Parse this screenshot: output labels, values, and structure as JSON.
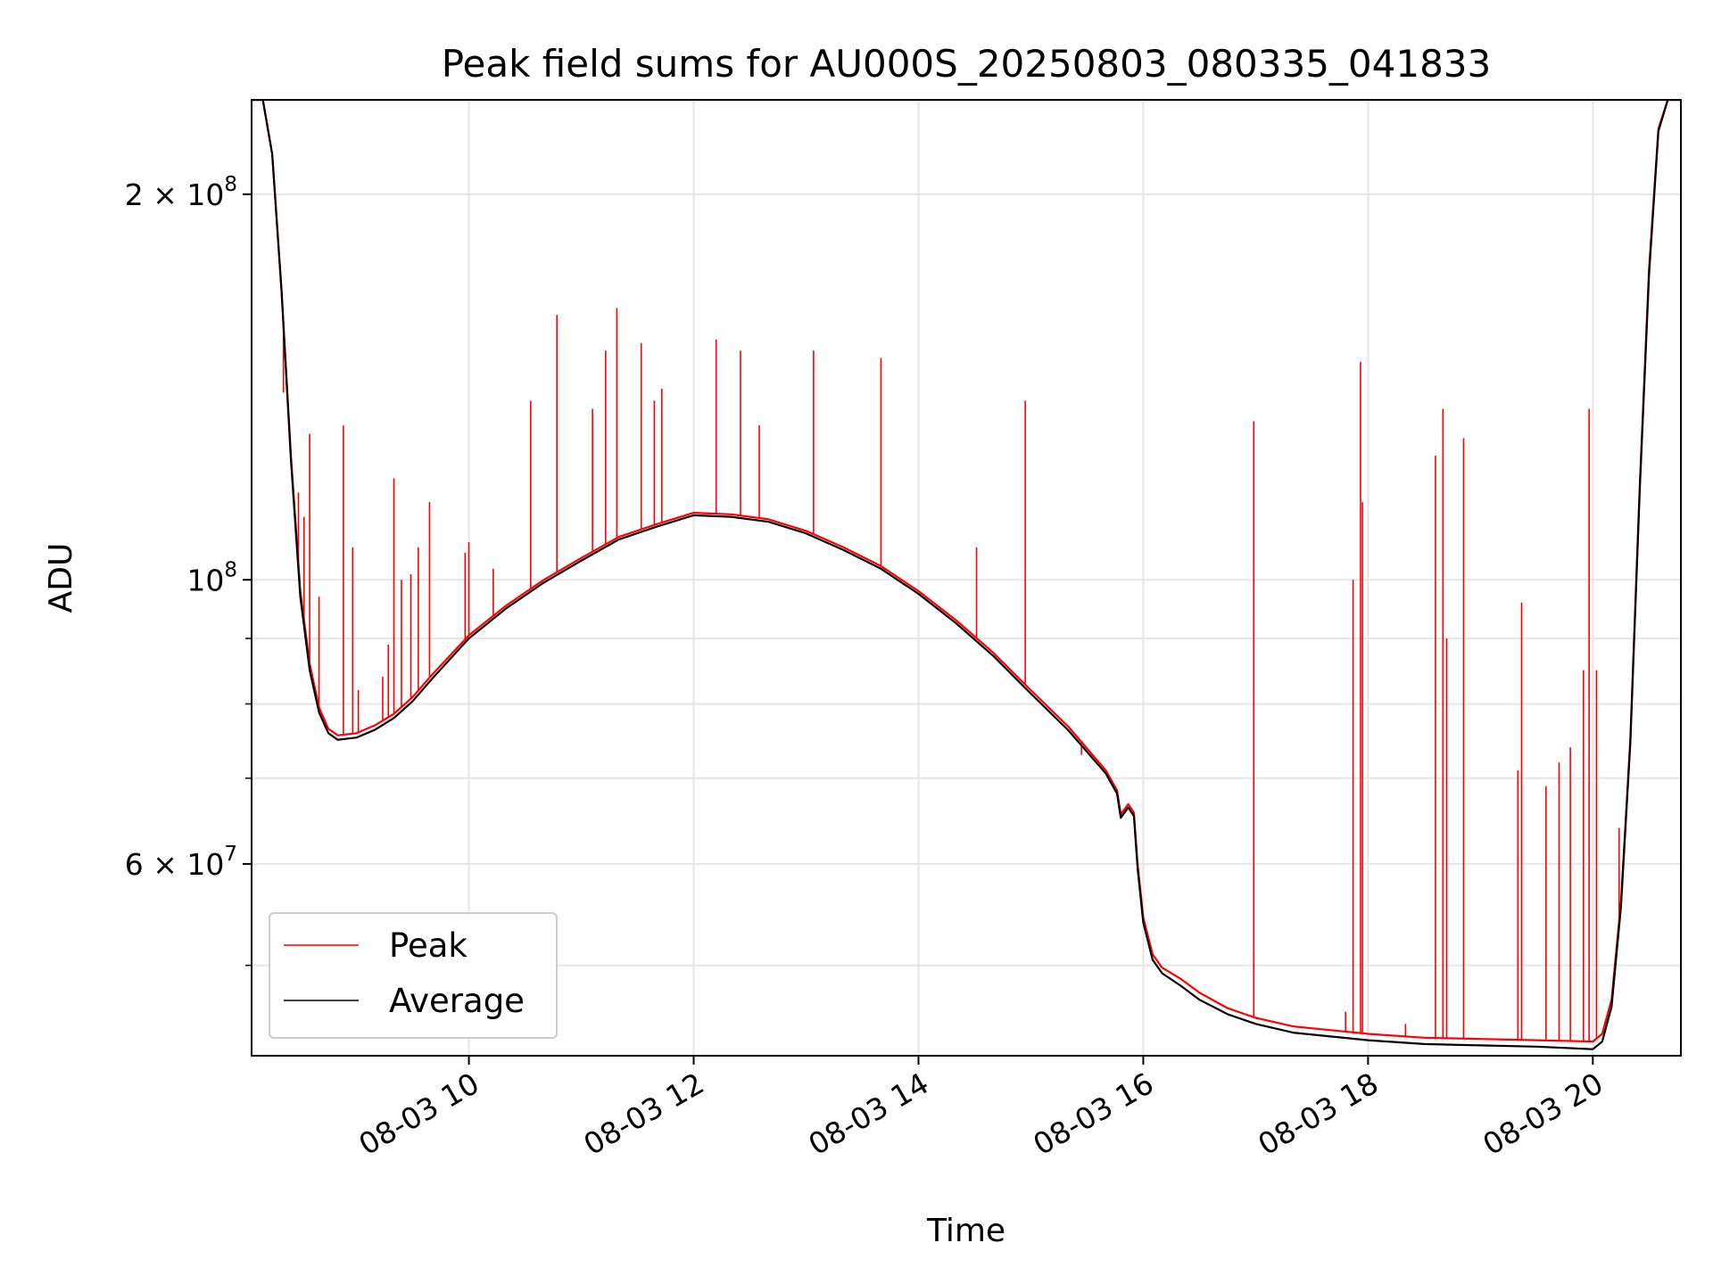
{
  "chart_data": {
    "type": "line",
    "title": "Peak field sums for AU000S_20250803_080335_041833",
    "xlabel": "Time",
    "ylabel": "ADU",
    "y_scale": "log",
    "ylim": [
      42500000,
      237000000
    ],
    "xlim": [
      "2025-08-03 08:04",
      "2025-08-03 20:47"
    ],
    "grid": true,
    "legend_position": "lower-left",
    "x_ticks": [
      {
        "t": "2025-08-03 10:00",
        "label": "08-03 10"
      },
      {
        "t": "2025-08-03 12:00",
        "label": "08-03 12"
      },
      {
        "t": "2025-08-03 14:00",
        "label": "08-03 14"
      },
      {
        "t": "2025-08-03 16:00",
        "label": "08-03 16"
      },
      {
        "t": "2025-08-03 18:00",
        "label": "08-03 18"
      },
      {
        "t": "2025-08-03 20:00",
        "label": "08-03 20"
      }
    ],
    "y_ticks": [
      {
        "value": 200000000,
        "mantissa": "2",
        "times": "×",
        "base": "10",
        "exp": "8"
      },
      {
        "value": 100000000,
        "mantissa": "",
        "times": "",
        "base": "10",
        "exp": "8"
      },
      {
        "value": 60000000,
        "mantissa": "6",
        "times": "×",
        "base": "10",
        "exp": "7"
      }
    ],
    "y_minor_ticks": [
      50000000,
      70000000,
      80000000,
      90000000,
      300000000
    ],
    "series": [
      {
        "name": "Peak",
        "color": "#ff0000",
        "baseline": [
          [
            "2025-08-03 08:04",
            237000000
          ],
          [
            "2025-08-03 08:10",
            237000000
          ],
          [
            "2025-08-03 08:15",
            215000000
          ],
          [
            "2025-08-03 08:20",
            168000000
          ],
          [
            "2025-08-03 08:25",
            125000000
          ],
          [
            "2025-08-03 08:30",
            98000000
          ],
          [
            "2025-08-03 08:35",
            86000000
          ],
          [
            "2025-08-03 08:40",
            79500000
          ],
          [
            "2025-08-03 08:45",
            76500000
          ],
          [
            "2025-08-03 08:50",
            75600000
          ],
          [
            "2025-08-03 09:00",
            75900000
          ],
          [
            "2025-08-03 09:10",
            77000000
          ],
          [
            "2025-08-03 09:20",
            78600000
          ],
          [
            "2025-08-03 09:30",
            81000000
          ],
          [
            "2025-08-03 09:40",
            84200000
          ],
          [
            "2025-08-03 10:00",
            90500000
          ],
          [
            "2025-08-03 10:20",
            95500000
          ],
          [
            "2025-08-03 10:40",
            100000000
          ],
          [
            "2025-08-03 11:00",
            104000000
          ],
          [
            "2025-08-03 11:20",
            108000000
          ],
          [
            "2025-08-03 11:40",
            110500000
          ],
          [
            "2025-08-03 12:00",
            112800000
          ],
          [
            "2025-08-03 12:20",
            112500000
          ],
          [
            "2025-08-03 12:40",
            111500000
          ],
          [
            "2025-08-03 13:00",
            109200000
          ],
          [
            "2025-08-03 13:20",
            106000000
          ],
          [
            "2025-08-03 13:40",
            102500000
          ],
          [
            "2025-08-03 14:00",
            98000000
          ],
          [
            "2025-08-03 14:20",
            93000000
          ],
          [
            "2025-08-03 14:40",
            87700000
          ],
          [
            "2025-08-03 15:00",
            82000000
          ],
          [
            "2025-08-03 15:20",
            76800000
          ],
          [
            "2025-08-03 15:40",
            71000000
          ],
          [
            "2025-08-03 15:46",
            68500000
          ],
          [
            "2025-08-03 15:48",
            65600000
          ],
          [
            "2025-08-03 15:52",
            66800000
          ],
          [
            "2025-08-03 15:55",
            65800000
          ],
          [
            "2025-08-03 15:57",
            60000000
          ],
          [
            "2025-08-03 16:00",
            54500000
          ],
          [
            "2025-08-03 16:05",
            51000000
          ],
          [
            "2025-08-03 16:10",
            49800000
          ],
          [
            "2025-08-03 16:20",
            48800000
          ],
          [
            "2025-08-03 16:30",
            47600000
          ],
          [
            "2025-08-03 16:45",
            46300000
          ],
          [
            "2025-08-03 17:00",
            45500000
          ],
          [
            "2025-08-03 17:20",
            44800000
          ],
          [
            "2025-08-03 17:40",
            44500000
          ],
          [
            "2025-08-03 18:00",
            44200000
          ],
          [
            "2025-08-03 18:30",
            43900000
          ],
          [
            "2025-08-03 19:00",
            43800000
          ],
          [
            "2025-08-03 19:30",
            43700000
          ],
          [
            "2025-08-03 20:00",
            43600000
          ],
          [
            "2025-08-03 20:05",
            44200000
          ],
          [
            "2025-08-03 20:10",
            47000000
          ],
          [
            "2025-08-03 20:15",
            56000000
          ],
          [
            "2025-08-03 20:20",
            75000000
          ],
          [
            "2025-08-03 20:25",
            118000000
          ],
          [
            "2025-08-03 20:30",
            175000000
          ],
          [
            "2025-08-03 20:35",
            225000000
          ],
          [
            "2025-08-03 20:40",
            237000000
          ],
          [
            "2025-08-03 20:47",
            237000000
          ]
        ],
        "spikes": [
          [
            "2025-08-03 08:21",
            140000000
          ],
          [
            "2025-08-03 08:29",
            117000000
          ],
          [
            "2025-08-03 08:32",
            112000000
          ],
          [
            "2025-08-03 08:35",
            130000000
          ],
          [
            "2025-08-03 08:40",
            97000000
          ],
          [
            "2025-08-03 08:53",
            132000000
          ],
          [
            "2025-08-03 08:58",
            106000000
          ],
          [
            "2025-08-03 09:01",
            82000000
          ],
          [
            "2025-08-03 09:14",
            84000000
          ],
          [
            "2025-08-03 09:17",
            89000000
          ],
          [
            "2025-08-03 09:20",
            120000000
          ],
          [
            "2025-08-03 09:24",
            100000000
          ],
          [
            "2025-08-03 09:29",
            101000000
          ],
          [
            "2025-08-03 09:33",
            106000000
          ],
          [
            "2025-08-03 09:39",
            115000000
          ],
          [
            "2025-08-03 09:58",
            105000000
          ],
          [
            "2025-08-03 10:00",
            107000000
          ],
          [
            "2025-08-03 10:13",
            102000000
          ],
          [
            "2025-08-03 10:33",
            138000000
          ],
          [
            "2025-08-03 10:47",
            161000000
          ],
          [
            "2025-08-03 11:06",
            136000000
          ],
          [
            "2025-08-03 11:13",
            151000000
          ],
          [
            "2025-08-03 11:19",
            163000000
          ],
          [
            "2025-08-03 11:32",
            153000000
          ],
          [
            "2025-08-03 11:39",
            138000000
          ],
          [
            "2025-08-03 11:43",
            141000000
          ],
          [
            "2025-08-03 12:12",
            154000000
          ],
          [
            "2025-08-03 12:25",
            151000000
          ],
          [
            "2025-08-03 12:35",
            132000000
          ],
          [
            "2025-08-03 13:04",
            151000000
          ],
          [
            "2025-08-03 13:40",
            149000000
          ],
          [
            "2025-08-03 14:31",
            106000000
          ],
          [
            "2025-08-03 14:57",
            138000000
          ],
          [
            "2025-08-03 15:27",
            73000000
          ],
          [
            "2025-08-03 16:59",
            133000000
          ],
          [
            "2025-08-03 17:48",
            46000000
          ],
          [
            "2025-08-03 17:52",
            100000000
          ],
          [
            "2025-08-03 17:56",
            148000000
          ],
          [
            "2025-08-03 17:57",
            115000000
          ],
          [
            "2025-08-03 18:20",
            45000000
          ],
          [
            "2025-08-03 18:36",
            125000000
          ],
          [
            "2025-08-03 18:40",
            136000000
          ],
          [
            "2025-08-03 18:42",
            90000000
          ],
          [
            "2025-08-03 18:51",
            129000000
          ],
          [
            "2025-08-03 19:20",
            71000000
          ],
          [
            "2025-08-03 19:22",
            96000000
          ],
          [
            "2025-08-03 19:35",
            69000000
          ],
          [
            "2025-08-03 19:42",
            72000000
          ],
          [
            "2025-08-03 19:48",
            74000000
          ],
          [
            "2025-08-03 19:55",
            85000000
          ],
          [
            "2025-08-03 19:58",
            136000000
          ],
          [
            "2025-08-03 20:02",
            85000000
          ],
          [
            "2025-08-03 20:14",
            64000000
          ]
        ]
      },
      {
        "name": "Average",
        "color": "#000000",
        "baseline": [
          [
            "2025-08-03 08:04",
            237000000
          ],
          [
            "2025-08-03 08:10",
            237000000
          ],
          [
            "2025-08-03 08:15",
            215000000
          ],
          [
            "2025-08-03 08:20",
            168000000
          ],
          [
            "2025-08-03 08:25",
            124000000
          ],
          [
            "2025-08-03 08:30",
            97000000
          ],
          [
            "2025-08-03 08:35",
            85000000
          ],
          [
            "2025-08-03 08:40",
            78800000
          ],
          [
            "2025-08-03 08:45",
            75900000
          ],
          [
            "2025-08-03 08:50",
            75000000
          ],
          [
            "2025-08-03 09:00",
            75300000
          ],
          [
            "2025-08-03 09:10",
            76400000
          ],
          [
            "2025-08-03 09:20",
            78000000
          ],
          [
            "2025-08-03 09:30",
            80400000
          ],
          [
            "2025-08-03 09:40",
            83600000
          ],
          [
            "2025-08-03 10:00",
            90000000
          ],
          [
            "2025-08-03 10:20",
            95000000
          ],
          [
            "2025-08-03 10:40",
            99500000
          ],
          [
            "2025-08-03 11:00",
            103500000
          ],
          [
            "2025-08-03 11:20",
            107500000
          ],
          [
            "2025-08-03 11:40",
            110000000
          ],
          [
            "2025-08-03 12:00",
            112300000
          ],
          [
            "2025-08-03 12:20",
            112000000
          ],
          [
            "2025-08-03 12:40",
            111000000
          ],
          [
            "2025-08-03 13:00",
            108700000
          ],
          [
            "2025-08-03 13:20",
            105500000
          ],
          [
            "2025-08-03 13:40",
            102000000
          ],
          [
            "2025-08-03 14:00",
            97500000
          ],
          [
            "2025-08-03 14:20",
            92500000
          ],
          [
            "2025-08-03 14:40",
            87200000
          ],
          [
            "2025-08-03 15:00",
            81500000
          ],
          [
            "2025-08-03 15:20",
            76300000
          ],
          [
            "2025-08-03 15:40",
            70600000
          ],
          [
            "2025-08-03 15:46",
            68100000
          ],
          [
            "2025-08-03 15:48",
            65200000
          ],
          [
            "2025-08-03 15:52",
            66400000
          ],
          [
            "2025-08-03 15:55",
            65400000
          ],
          [
            "2025-08-03 15:57",
            59500000
          ],
          [
            "2025-08-03 16:00",
            54000000
          ],
          [
            "2025-08-03 16:05",
            50500000
          ],
          [
            "2025-08-03 16:10",
            49300000
          ],
          [
            "2025-08-03 16:20",
            48200000
          ],
          [
            "2025-08-03 16:30",
            47000000
          ],
          [
            "2025-08-03 16:45",
            45800000
          ],
          [
            "2025-08-03 17:00",
            45000000
          ],
          [
            "2025-08-03 17:20",
            44300000
          ],
          [
            "2025-08-03 17:40",
            44000000
          ],
          [
            "2025-08-03 18:00",
            43700000
          ],
          [
            "2025-08-03 18:30",
            43400000
          ],
          [
            "2025-08-03 19:00",
            43300000
          ],
          [
            "2025-08-03 19:30",
            43200000
          ],
          [
            "2025-08-03 20:00",
            43000000
          ],
          [
            "2025-08-03 20:05",
            43600000
          ],
          [
            "2025-08-03 20:10",
            46400000
          ],
          [
            "2025-08-03 20:15",
            55500000
          ],
          [
            "2025-08-03 20:20",
            74500000
          ],
          [
            "2025-08-03 20:25",
            117000000
          ],
          [
            "2025-08-03 20:30",
            173000000
          ],
          [
            "2025-08-03 20:35",
            224000000
          ],
          [
            "2025-08-03 20:40",
            237000000
          ],
          [
            "2025-08-03 20:47",
            237000000
          ]
        ]
      }
    ]
  }
}
